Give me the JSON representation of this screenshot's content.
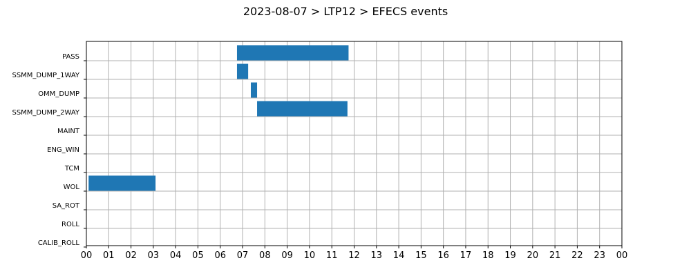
{
  "chart_data": {
    "type": "gantt",
    "title": "2023-08-07 > LTP12 > EFECS events",
    "xlabel": "",
    "ylabel": "",
    "x_unit": "hour",
    "xlim": [
      0,
      24
    ],
    "x_tick_labels": [
      "00",
      "01",
      "02",
      "03",
      "04",
      "05",
      "06",
      "07",
      "08",
      "09",
      "10",
      "11",
      "12",
      "13",
      "14",
      "15",
      "16",
      "17",
      "18",
      "19",
      "20",
      "21",
      "22",
      "23",
      "00"
    ],
    "categories": [
      "PASS",
      "SSMM_DUMP_1WAY",
      "OMM_DUMP",
      "SSMM_DUMP_2WAY",
      "MAINT",
      "ENG_WIN",
      "TCM",
      "WOL",
      "SA_ROT",
      "ROLL",
      "CALIB_ROLL"
    ],
    "grid": true,
    "bar_color": "#1f77b4",
    "events": [
      {
        "category": "PASS",
        "start": 6.75,
        "end": 11.75
      },
      {
        "category": "SSMM_DUMP_1WAY",
        "start": 6.75,
        "end": 7.25
      },
      {
        "category": "OMM_DUMP",
        "start": 7.37,
        "end": 7.65
      },
      {
        "category": "SSMM_DUMP_2WAY",
        "start": 7.65,
        "end": 11.7
      },
      {
        "category": "WOL",
        "start": 0.1,
        "end": 3.1
      }
    ]
  }
}
